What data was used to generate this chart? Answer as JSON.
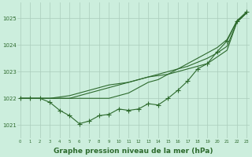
{
  "x": [
    0,
    1,
    2,
    3,
    4,
    5,
    6,
    7,
    8,
    9,
    10,
    11,
    12,
    13,
    14,
    15,
    16,
    17,
    18,
    19,
    20,
    21,
    22,
    23
  ],
  "line_straight1": [
    1022.0,
    1022.0,
    1022.0,
    1022.0,
    1022.0,
    1022.0,
    1022.0,
    1022.0,
    1022.0,
    1022.0,
    1022.1,
    1022.2,
    1022.4,
    1022.6,
    1022.7,
    1022.9,
    1023.1,
    1023.3,
    1023.5,
    1023.7,
    1023.9,
    1024.2,
    1024.9,
    1025.2
  ],
  "line_straight2": [
    1022.0,
    1022.0,
    1022.0,
    1022.0,
    1022.0,
    1022.0,
    1022.1,
    1022.2,
    1022.3,
    1022.4,
    1022.5,
    1022.6,
    1022.7,
    1022.8,
    1022.9,
    1023.0,
    1023.1,
    1023.2,
    1023.35,
    1023.5,
    1023.7,
    1023.95,
    1024.85,
    1025.2
  ],
  "line_straight3": [
    1022.0,
    1022.0,
    1022.0,
    1022.0,
    1022.05,
    1022.1,
    1022.2,
    1022.3,
    1022.4,
    1022.5,
    1022.55,
    1022.6,
    1022.7,
    1022.8,
    1022.85,
    1022.9,
    1023.0,
    1023.1,
    1023.2,
    1023.3,
    1023.55,
    1023.8,
    1024.85,
    1025.2
  ],
  "line_wavy": [
    1022.0,
    1022.0,
    1022.0,
    1021.85,
    1021.55,
    1021.35,
    1021.05,
    1021.15,
    1021.35,
    1021.4,
    1021.6,
    1021.55,
    1021.6,
    1021.8,
    1021.75,
    1022.0,
    1022.3,
    1022.65,
    1023.1,
    1023.3,
    1023.75,
    1024.15,
    1024.9,
    1025.25
  ],
  "line_color": "#2d6a2d",
  "bg_color": "#cceedd",
  "grid_color": "#aaccbb",
  "xlabel": "Graphe pression niveau de la mer (hPa)",
  "xlabel_fontsize": 6.5,
  "yticks": [
    1021,
    1022,
    1023,
    1024,
    1025
  ],
  "xticks": [
    0,
    1,
    2,
    3,
    4,
    5,
    6,
    7,
    8,
    9,
    10,
    11,
    12,
    13,
    14,
    15,
    16,
    17,
    18,
    19,
    20,
    21,
    22,
    23
  ],
  "ylim": [
    1020.5,
    1025.6
  ],
  "xlim": [
    -0.3,
    23.3
  ],
  "markersize": 2.0,
  "linewidth": 0.8
}
